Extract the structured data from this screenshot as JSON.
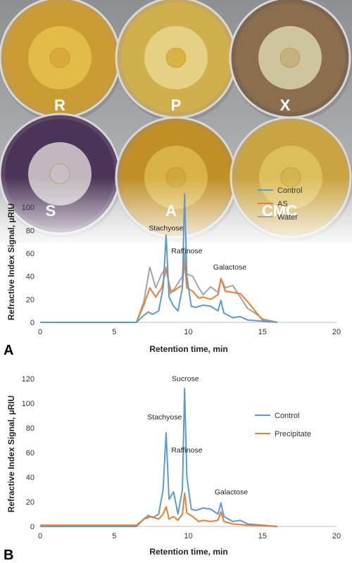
{
  "plates": [
    {
      "label": "R",
      "edge": "#c29a4a",
      "bg": "#c99d33",
      "halo": "#e6c24a",
      "center": "#d9a838"
    },
    {
      "label": "P",
      "edge": "#c4a860",
      "bg": "#cfb04c",
      "halo": "#e9d78d",
      "center": "#d7b23c"
    },
    {
      "label": "X",
      "edge": "#7d6650",
      "bg": "#8a6e4e",
      "halo": "#d9d3ad",
      "center": "#c4b07c"
    },
    {
      "label": "S",
      "edge": "#5a4866",
      "bg": "#4c3458",
      "halo": "#d5d0d0",
      "center": "#c8c0c4"
    },
    {
      "label": "A",
      "edge": "#b58d3e",
      "bg": "#c08f26",
      "halo": "#dcb84a",
      "center": "#d1a53a"
    },
    {
      "label": "CMC",
      "edge": "#c3a355",
      "bg": "#c9a440",
      "halo": "#dfc460",
      "center": "#d4b24a"
    }
  ],
  "colors": {
    "control": "#5b9bd5",
    "as": "#ed7d31",
    "water": "#a5a5a5",
    "precipitate": "#ed7d31"
  },
  "chart_data": [
    {
      "type": "line",
      "panel": "A",
      "xlabel": "Retention time, min",
      "ylabel": "Refractive Index Signal, µRIU",
      "xlim": [
        0,
        20
      ],
      "ylim": [
        0,
        120
      ],
      "xticks": [
        0,
        5,
        10,
        15,
        20
      ],
      "yticks": [
        0,
        20,
        40,
        60,
        80,
        100
      ],
      "legend_position": "top-right",
      "annotations": [
        {
          "text": "Stachyose",
          "x": 8.5,
          "y": 80
        },
        {
          "text": "Raffinose",
          "x": 9.9,
          "y": 60
        },
        {
          "text": "Galactose",
          "x": 12.8,
          "y": 46
        }
      ],
      "series": [
        {
          "name": "Control",
          "color_key": "control",
          "points": [
            [
              0,
              0
            ],
            [
              6.5,
              0
            ],
            [
              7.0,
              6
            ],
            [
              7.3,
              9
            ],
            [
              7.6,
              7
            ],
            [
              8.0,
              10
            ],
            [
              8.3,
              30
            ],
            [
              8.5,
              76
            ],
            [
              8.7,
              22
            ],
            [
              9.0,
              14
            ],
            [
              9.3,
              10
            ],
            [
              9.6,
              30
            ],
            [
              9.75,
              112
            ],
            [
              9.9,
              40
            ],
            [
              10.2,
              14
            ],
            [
              10.5,
              13
            ],
            [
              11.0,
              15
            ],
            [
              11.5,
              14
            ],
            [
              12.0,
              10
            ],
            [
              12.2,
              19
            ],
            [
              12.4,
              8
            ],
            [
              13.0,
              4
            ],
            [
              13.5,
              5
            ],
            [
              14.0,
              2
            ],
            [
              15.0,
              1
            ],
            [
              16,
              0
            ]
          ]
        },
        {
          "name": "AS",
          "color_key": "as",
          "points": [
            [
              0,
              0
            ],
            [
              6.5,
              0
            ],
            [
              7.0,
              15
            ],
            [
              7.4,
              30
            ],
            [
              7.8,
              22
            ],
            [
              8.2,
              30
            ],
            [
              8.5,
              46
            ],
            [
              8.8,
              28
            ],
            [
              9.0,
              27
            ],
            [
              9.3,
              30
            ],
            [
              9.6,
              32
            ],
            [
              9.75,
              53
            ],
            [
              9.9,
              30
            ],
            [
              10.3,
              27
            ],
            [
              10.7,
              21
            ],
            [
              11.0,
              22
            ],
            [
              11.5,
              20
            ],
            [
              12.0,
              24
            ],
            [
              12.2,
              38
            ],
            [
              12.5,
              27
            ],
            [
              13.0,
              26
            ],
            [
              13.5,
              25
            ],
            [
              14.0,
              18
            ],
            [
              14.5,
              10
            ],
            [
              15.0,
              2
            ],
            [
              16,
              0
            ]
          ]
        },
        {
          "name": "Water",
          "color_key": "water",
          "points": [
            [
              0,
              0
            ],
            [
              6.5,
              0
            ],
            [
              7.0,
              18
            ],
            [
              7.4,
              48
            ],
            [
              7.8,
              30
            ],
            [
              8.2,
              42
            ],
            [
              8.5,
              48
            ],
            [
              8.8,
              25
            ],
            [
              9.0,
              28
            ],
            [
              9.3,
              34
            ],
            [
              9.6,
              40
            ],
            [
              9.75,
              60
            ],
            [
              9.9,
              42
            ],
            [
              10.3,
              40
            ],
            [
              10.7,
              30
            ],
            [
              11.0,
              24
            ],
            [
              11.5,
              31
            ],
            [
              12.0,
              26
            ],
            [
              12.2,
              38
            ],
            [
              12.5,
              30
            ],
            [
              13.0,
              32
            ],
            [
              13.5,
              22
            ],
            [
              14.0,
              12
            ],
            [
              14.5,
              8
            ],
            [
              15.0,
              3
            ],
            [
              16,
              0
            ]
          ]
        }
      ]
    },
    {
      "type": "line",
      "panel": "B",
      "xlabel": "Retention time, min",
      "ylabel": "Refractive Index Signal, µRIU",
      "xlim": [
        0,
        20
      ],
      "ylim": [
        0,
        120
      ],
      "xticks": [
        0,
        5,
        10,
        15,
        20
      ],
      "yticks": [
        0,
        20,
        40,
        60,
        80,
        100,
        120
      ],
      "legend_position": "right",
      "annotations": [
        {
          "text": "Sucrose",
          "x": 9.8,
          "y": 118
        },
        {
          "text": "Stachyose",
          "x": 8.4,
          "y": 87
        },
        {
          "text": "Raffinose",
          "x": 9.9,
          "y": 60
        },
        {
          "text": "Galactose",
          "x": 12.9,
          "y": 26
        }
      ],
      "series": [
        {
          "name": "Control",
          "color_key": "control",
          "points": [
            [
              0,
              0
            ],
            [
              6.5,
              0
            ],
            [
              7.0,
              6
            ],
            [
              7.3,
              9
            ],
            [
              7.6,
              7
            ],
            [
              8.0,
              10
            ],
            [
              8.3,
              30
            ],
            [
              8.5,
              76
            ],
            [
              8.7,
              22
            ],
            [
              9.0,
              28
            ],
            [
              9.3,
              10
            ],
            [
              9.6,
              30
            ],
            [
              9.75,
              112
            ],
            [
              9.9,
              40
            ],
            [
              10.2,
              14
            ],
            [
              10.5,
              13
            ],
            [
              11.0,
              15
            ],
            [
              11.5,
              14
            ],
            [
              12.0,
              10
            ],
            [
              12.2,
              19
            ],
            [
              12.4,
              8
            ],
            [
              13.0,
              4
            ],
            [
              13.5,
              5
            ],
            [
              14.0,
              2
            ],
            [
              15.0,
              1
            ],
            [
              16,
              0
            ]
          ]
        },
        {
          "name": "Precipitate",
          "color_key": "precipitate",
          "points": [
            [
              0,
              1
            ],
            [
              6.5,
              1
            ],
            [
              7.0,
              6
            ],
            [
              7.5,
              8
            ],
            [
              8.0,
              6
            ],
            [
              8.3,
              10
            ],
            [
              8.5,
              16
            ],
            [
              8.7,
              6
            ],
            [
              9.0,
              8
            ],
            [
              9.3,
              5
            ],
            [
              9.6,
              10
            ],
            [
              9.75,
              27
            ],
            [
              9.9,
              11
            ],
            [
              10.3,
              8
            ],
            [
              10.7,
              4
            ],
            [
              11.0,
              5
            ],
            [
              11.5,
              4
            ],
            [
              12.0,
              5
            ],
            [
              12.2,
              12
            ],
            [
              12.4,
              4
            ],
            [
              13.0,
              2
            ],
            [
              14.0,
              1
            ],
            [
              16,
              0
            ]
          ]
        }
      ]
    }
  ]
}
